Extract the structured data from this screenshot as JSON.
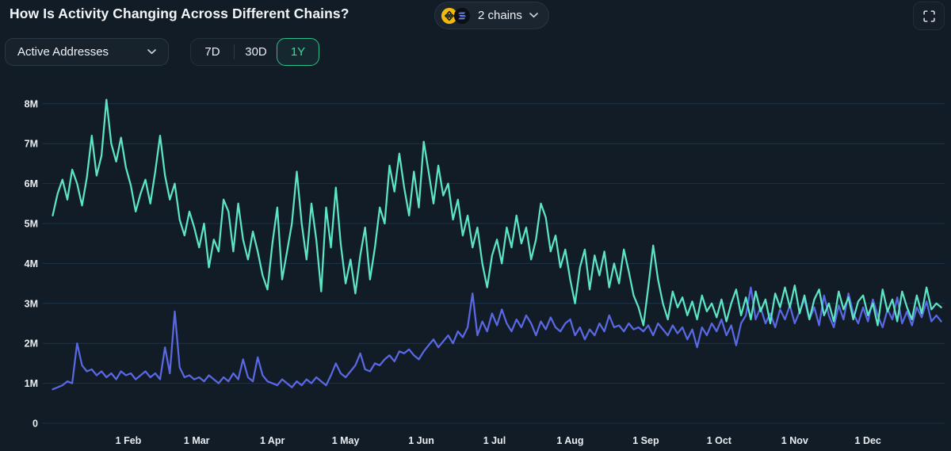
{
  "header": {
    "title": "How Is Activity Changing Across Different Chains?",
    "chains_selector": {
      "label": "2 chains",
      "icons": [
        "bnb-coin-icon",
        "solana-coin-icon"
      ],
      "chevron_icon": "chevron-down-icon"
    },
    "fullscreen_icon": "fullscreen-expand-icon"
  },
  "toolbar": {
    "metric_selector": {
      "value": "Active Addresses",
      "chevron_icon": "chevron-down-icon"
    },
    "range_buttons": [
      {
        "label": "7D",
        "selected": false
      },
      {
        "label": "30D",
        "selected": false
      },
      {
        "label": "1Y",
        "selected": true
      }
    ]
  },
  "colors": {
    "background": "#121C26",
    "panel": "#1B2530",
    "border": "#28343F",
    "grid": "#1D3A55",
    "accent_green": "#2EBE8B",
    "series_teal": "#5CE5C5",
    "series_indigo": "#5A68E4",
    "bnb_yellow": "#F0B90B",
    "text_primary": "#F3F6F8"
  },
  "chart_data": {
    "type": "line",
    "title": "How Is Activity Changing Across Different Chains?",
    "metric": "Active Addresses",
    "time_range": "1Y",
    "grid": true,
    "legend": "none",
    "x_unit": "day-of-year (Jan 1 = 0), sampled every step_days",
    "step_days": 2,
    "x_tick_labels": [
      "1 Feb",
      "1 Mar",
      "1 Apr",
      "1 May",
      "1 Jun",
      "1 Jul",
      "1 Aug",
      "1 Sep",
      "1 Oct",
      "1 Nov",
      "1 Dec"
    ],
    "x_tick_days": [
      31,
      59,
      90,
      120,
      151,
      181,
      212,
      243,
      273,
      304,
      334
    ],
    "y_tick_labels": [
      "0",
      "1M",
      "2M",
      "3M",
      "4M",
      "5M",
      "6M",
      "7M",
      "8M"
    ],
    "y_unit": "millions of active addresses",
    "ylim_millions": [
      0,
      8.55
    ],
    "series": [
      {
        "name": "chain-indigo",
        "color": "#5A68E4",
        "values_millions": [
          0.85,
          0.9,
          0.95,
          1.05,
          1.0,
          2.0,
          1.45,
          1.3,
          1.35,
          1.2,
          1.3,
          1.15,
          1.25,
          1.1,
          1.3,
          1.2,
          1.25,
          1.1,
          1.2,
          1.3,
          1.15,
          1.25,
          1.1,
          1.9,
          1.25,
          2.8,
          1.4,
          1.15,
          1.2,
          1.1,
          1.15,
          1.05,
          1.2,
          1.1,
          1.0,
          1.15,
          1.05,
          1.25,
          1.1,
          1.6,
          1.15,
          1.05,
          1.65,
          1.2,
          1.05,
          1.0,
          0.95,
          1.1,
          1.0,
          0.9,
          1.05,
          0.95,
          1.1,
          1.0,
          1.15,
          1.05,
          0.95,
          1.2,
          1.5,
          1.25,
          1.15,
          1.3,
          1.45,
          1.75,
          1.35,
          1.3,
          1.5,
          1.45,
          1.6,
          1.7,
          1.55,
          1.8,
          1.75,
          1.85,
          1.7,
          1.6,
          1.8,
          1.95,
          2.1,
          1.9,
          2.05,
          2.2,
          2.0,
          2.3,
          2.15,
          2.4,
          3.25,
          2.2,
          2.55,
          2.3,
          2.75,
          2.45,
          2.85,
          2.5,
          2.3,
          2.6,
          2.4,
          2.7,
          2.5,
          2.2,
          2.55,
          2.35,
          2.65,
          2.4,
          2.3,
          2.5,
          2.6,
          2.2,
          2.4,
          2.1,
          2.35,
          2.2,
          2.5,
          2.3,
          2.7,
          2.4,
          2.45,
          2.3,
          2.5,
          2.35,
          2.4,
          2.3,
          2.45,
          2.2,
          2.5,
          2.35,
          2.2,
          2.45,
          2.25,
          2.4,
          2.1,
          2.35,
          1.9,
          2.4,
          2.2,
          2.5,
          2.3,
          2.6,
          2.2,
          2.45,
          1.95,
          2.5,
          2.7,
          3.4,
          2.6,
          2.9,
          2.5,
          2.75,
          2.4,
          2.85,
          2.6,
          2.95,
          2.5,
          2.8,
          3.1,
          2.6,
          2.9,
          2.45,
          3.2,
          2.7,
          2.4,
          2.95,
          2.6,
          3.25,
          2.75,
          2.5,
          2.9,
          2.55,
          3.1,
          2.7,
          2.4,
          2.85,
          2.6,
          3.15,
          2.5,
          2.8,
          2.45,
          2.9,
          2.65,
          3.05,
          2.55,
          2.7,
          2.55
        ]
      },
      {
        "name": "chain-teal",
        "color": "#5CE5C5",
        "values_millions": [
          5.2,
          5.75,
          6.1,
          5.6,
          6.35,
          6.0,
          5.45,
          6.15,
          7.2,
          6.2,
          6.7,
          8.1,
          7.0,
          6.55,
          7.15,
          6.4,
          5.95,
          5.3,
          5.75,
          6.1,
          5.5,
          6.3,
          7.2,
          6.2,
          5.6,
          6.0,
          5.1,
          4.7,
          5.3,
          4.9,
          4.4,
          5.0,
          3.9,
          4.6,
          4.3,
          5.6,
          5.3,
          4.3,
          5.5,
          4.6,
          4.1,
          4.8,
          4.3,
          3.7,
          3.35,
          4.5,
          5.4,
          3.6,
          4.3,
          5.0,
          6.3,
          5.0,
          4.1,
          5.5,
          4.6,
          3.3,
          5.4,
          4.4,
          5.9,
          4.5,
          3.5,
          4.1,
          3.25,
          4.2,
          4.9,
          3.6,
          4.4,
          5.4,
          5.0,
          6.45,
          5.8,
          6.75,
          5.9,
          5.2,
          6.3,
          5.4,
          7.05,
          6.3,
          5.5,
          6.45,
          5.7,
          6.0,
          5.1,
          5.6,
          4.7,
          5.2,
          4.4,
          4.9,
          4.0,
          3.4,
          4.2,
          4.6,
          4.0,
          4.9,
          4.4,
          5.2,
          4.5,
          4.9,
          4.1,
          4.6,
          5.5,
          5.15,
          4.3,
          4.7,
          3.9,
          4.35,
          3.6,
          3.0,
          3.9,
          4.35,
          3.35,
          4.2,
          3.7,
          4.3,
          3.4,
          4.0,
          3.5,
          4.35,
          3.8,
          3.2,
          2.9,
          2.45,
          3.4,
          4.45,
          3.6,
          3.0,
          2.6,
          3.3,
          2.9,
          3.15,
          2.7,
          3.05,
          2.6,
          3.2,
          2.8,
          3.0,
          2.65,
          3.1,
          2.55,
          3.0,
          3.35,
          2.7,
          3.15,
          2.6,
          3.3,
          2.8,
          3.1,
          2.5,
          3.25,
          2.9,
          3.4,
          2.9,
          3.45,
          2.75,
          3.2,
          2.6,
          3.1,
          3.35,
          2.7,
          3.0,
          2.55,
          3.3,
          2.85,
          3.15,
          2.6,
          3.05,
          3.2,
          2.7,
          3.0,
          2.45,
          3.35,
          2.8,
          3.1,
          2.55,
          3.3,
          2.9,
          2.6,
          3.2,
          2.75,
          3.4,
          2.85,
          3.0,
          2.9
        ]
      }
    ]
  }
}
